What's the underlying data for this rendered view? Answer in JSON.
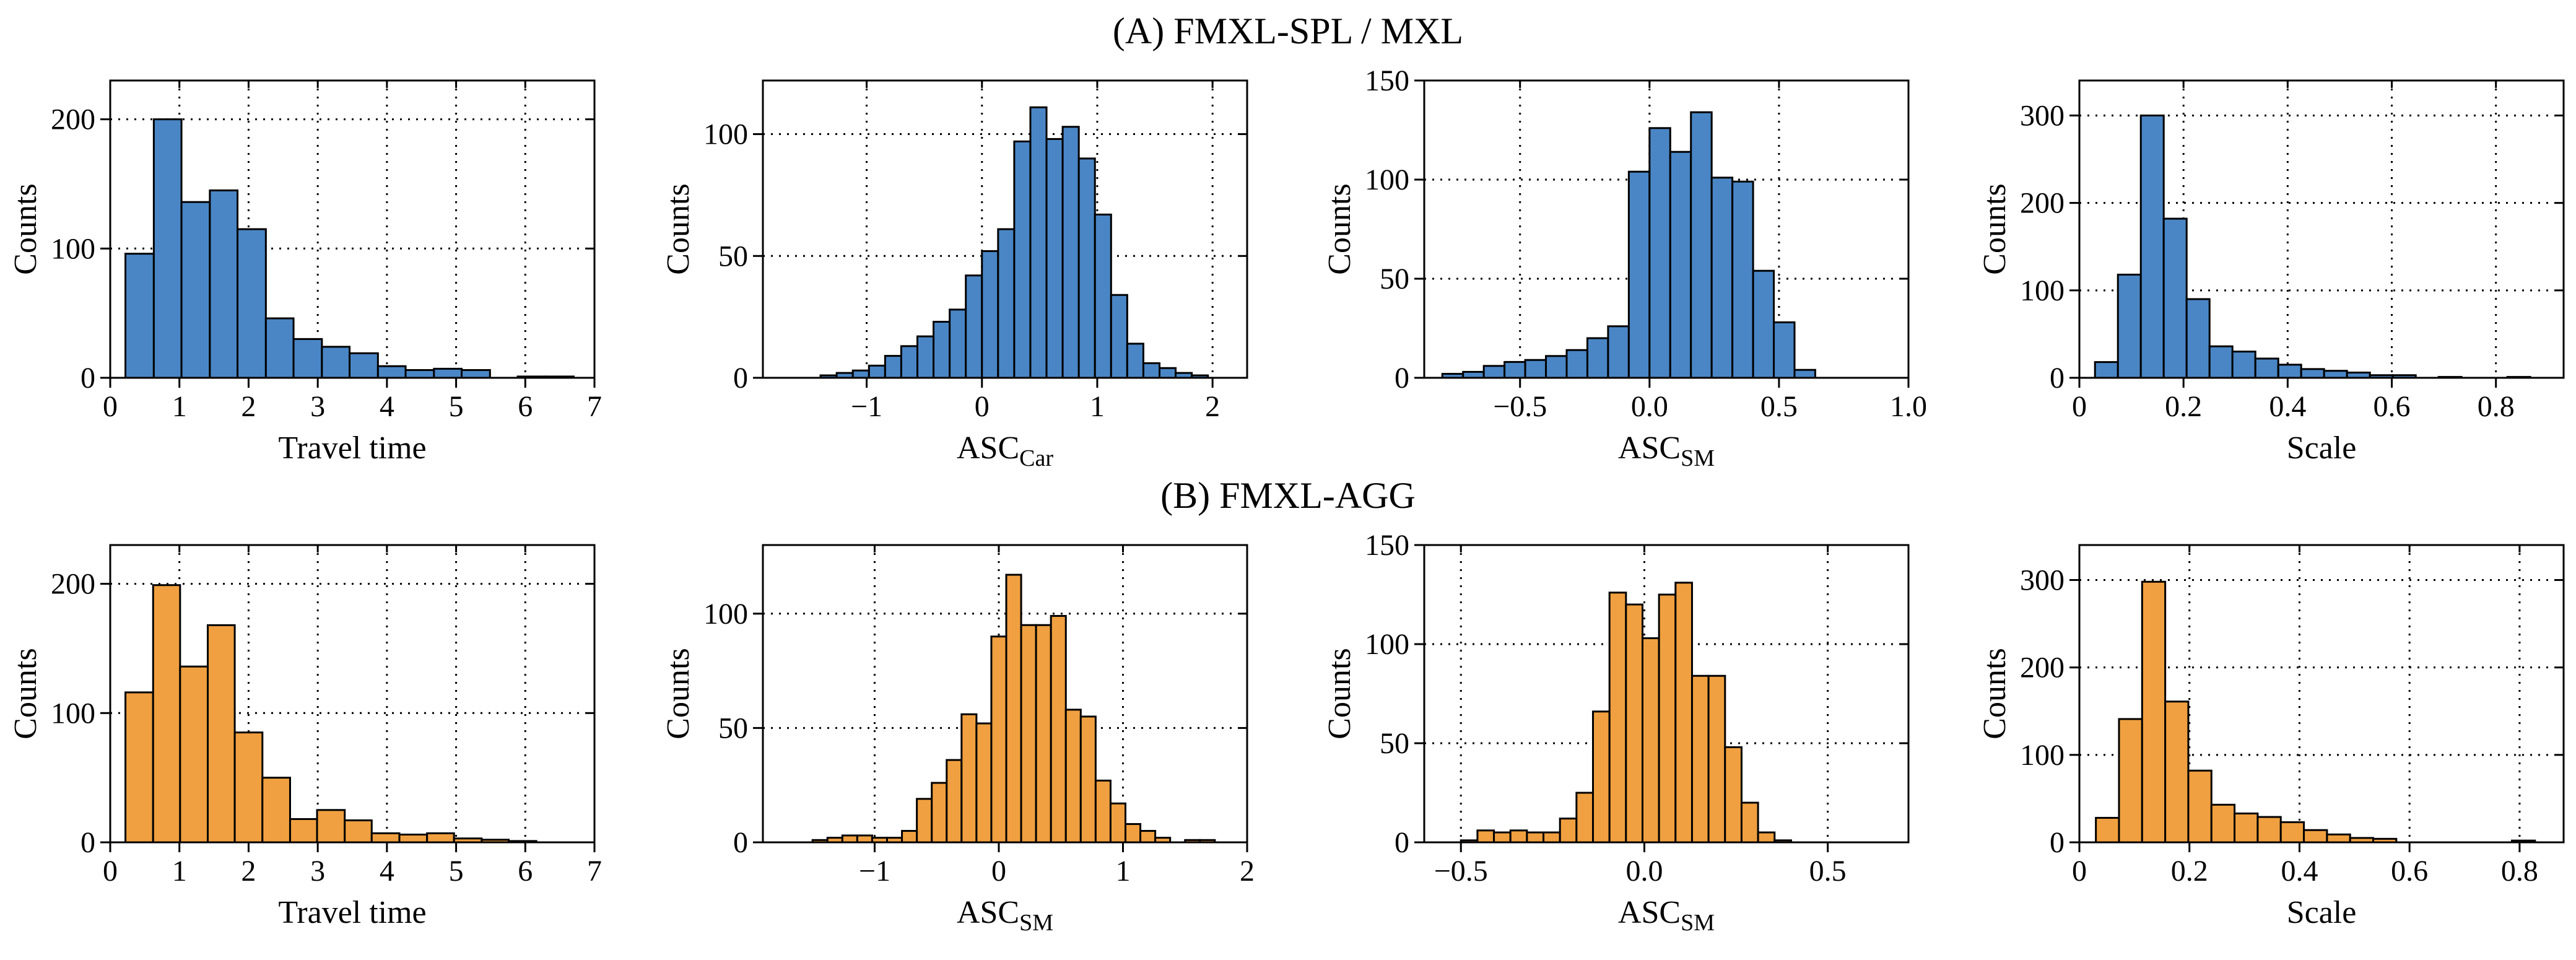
{
  "figure": {
    "row_titles": [
      "(A) FMXL-SPL / MXL",
      "(B) FMXL-AGG"
    ]
  },
  "colors": {
    "blue": "#4a86c5",
    "orange": "#f0a040",
    "edge": "#000000",
    "grid": "#000000"
  },
  "chart_data": [
    {
      "type": "bar",
      "row": "(A) FMXL-SPL / MXL",
      "color": "blue",
      "xlabel": "Travel time",
      "xlabel_sub": "",
      "ylabel": "Counts",
      "xlim": [
        0,
        7
      ],
      "ylim": [
        0,
        230
      ],
      "xticks": [
        0,
        1,
        2,
        3,
        4,
        5,
        6,
        7
      ],
      "xtick_labels": [
        "0",
        "1",
        "2",
        "3",
        "4",
        "5",
        "6",
        "7"
      ],
      "yticks": [
        0,
        100,
        200
      ],
      "ytick_labels": [
        "0",
        "100",
        "200"
      ],
      "bin_edges": [
        0.22,
        0.63,
        1.03,
        1.44,
        1.84,
        2.25,
        2.65,
        3.06,
        3.46,
        3.87,
        4.27,
        4.68,
        5.08,
        5.49,
        5.89,
        6.3,
        6.7
      ],
      "counts": [
        96,
        200,
        136,
        145,
        115,
        46,
        30,
        24,
        19,
        9,
        6,
        7,
        6,
        0,
        1,
        1
      ],
      "grid": true
    },
    {
      "type": "bar",
      "row": "(A) FMXL-SPL / MXL",
      "color": "blue",
      "xlabel": "ASC",
      "xlabel_sub": "Car",
      "ylabel": "Counts",
      "xlim": [
        -1.9,
        2.3
      ],
      "ylim": [
        0,
        122
      ],
      "xticks": [
        -1,
        0,
        1,
        2
      ],
      "xtick_labels": [
        "−1",
        "0",
        "1",
        "2"
      ],
      "yticks": [
        0,
        50,
        100
      ],
      "ytick_labels": [
        "0",
        "50",
        "100"
      ],
      "bin_edges": [
        -1.4,
        -1.26,
        -1.12,
        -0.98,
        -0.84,
        -0.7,
        -0.56,
        -0.42,
        -0.28,
        -0.14,
        0.0,
        0.14,
        0.28,
        0.42,
        0.56,
        0.7,
        0.84,
        0.98,
        1.12,
        1.26,
        1.4,
        1.54,
        1.68,
        1.82,
        1.96
      ],
      "counts": [
        1,
        2,
        3,
        5,
        9,
        13,
        17,
        23,
        28,
        42,
        52,
        61,
        97,
        111,
        98,
        103,
        90,
        67,
        34,
        14,
        6,
        4,
        2,
        1
      ],
      "grid": true
    },
    {
      "type": "bar",
      "row": "(A) FMXL-SPL / MXL",
      "color": "blue",
      "xlabel": "ASC",
      "xlabel_sub": "SM",
      "ylabel": "Counts",
      "xlim": [
        -0.87,
        1.0
      ],
      "ylim": [
        0,
        150
      ],
      "xticks": [
        -0.5,
        0.0,
        0.5,
        1.0
      ],
      "xtick_labels": [
        "−0.5",
        "0.0",
        "0.5",
        "1.0"
      ],
      "yticks": [
        0,
        50,
        100,
        150
      ],
      "ytick_labels": [
        "0",
        "50",
        "100",
        "150"
      ],
      "bin_edges": [
        -0.8,
        -0.72,
        -0.64,
        -0.56,
        -0.48,
        -0.4,
        -0.32,
        -0.24,
        -0.16,
        -0.08,
        0.0,
        0.08,
        0.16,
        0.24,
        0.32,
        0.4,
        0.48,
        0.56,
        0.64,
        0.72,
        0.8,
        0.88
      ],
      "counts": [
        2,
        3,
        6,
        8,
        9,
        11,
        14,
        20,
        26,
        104,
        126,
        114,
        134,
        101,
        99,
        54,
        28,
        4,
        0,
        0,
        0
      ],
      "grid": true
    },
    {
      "type": "bar",
      "row": "(A) FMXL-SPL / MXL",
      "color": "blue",
      "xlabel": "Scale",
      "xlabel_sub": "",
      "ylabel": "Counts",
      "xlim": [
        0,
        0.93
      ],
      "ylim": [
        0,
        340
      ],
      "xticks": [
        0,
        0.2,
        0.4,
        0.6,
        0.8
      ],
      "xtick_labels": [
        "0",
        "0.2",
        "0.4",
        "0.6",
        "0.8"
      ],
      "yticks": [
        0,
        100,
        200,
        300
      ],
      "ytick_labels": [
        "0",
        "100",
        "200",
        "300"
      ],
      "bin_edges": [
        0.03,
        0.074,
        0.118,
        0.162,
        0.206,
        0.25,
        0.294,
        0.338,
        0.382,
        0.426,
        0.47,
        0.514,
        0.558,
        0.602,
        0.646,
        0.69,
        0.734,
        0.778,
        0.822,
        0.866
      ],
      "counts": [
        18,
        118,
        300,
        182,
        90,
        36,
        30,
        22,
        15,
        10,
        8,
        6,
        3,
        3,
        0,
        1,
        0,
        0,
        1
      ],
      "grid": true
    },
    {
      "type": "bar",
      "row": "(B) FMXL-AGG",
      "color": "orange",
      "xlabel": "Travel time",
      "xlabel_sub": "",
      "ylabel": "Counts",
      "xlim": [
        0,
        7
      ],
      "ylim": [
        0,
        230
      ],
      "xticks": [
        0,
        1,
        2,
        3,
        4,
        5,
        6,
        7
      ],
      "xtick_labels": [
        "0",
        "1",
        "2",
        "3",
        "4",
        "5",
        "6",
        "7"
      ],
      "yticks": [
        0,
        100,
        200
      ],
      "ytick_labels": [
        "0",
        "100",
        "200"
      ],
      "bin_edges": [
        0.22,
        0.62,
        1.01,
        1.41,
        1.8,
        2.2,
        2.6,
        2.99,
        3.39,
        3.78,
        4.18,
        4.58,
        4.97,
        5.37,
        5.76,
        6.16
      ],
      "counts": [
        116,
        199,
        136,
        168,
        85,
        50,
        18,
        25,
        17,
        7,
        6,
        7,
        3,
        2,
        1
      ],
      "grid": true
    },
    {
      "type": "bar",
      "row": "(B) FMXL-AGG",
      "color": "orange",
      "xlabel": "ASC",
      "xlabel_sub": "SM",
      "ylabel": "Counts",
      "xlim": [
        -1.9,
        2.0
      ],
      "ylim": [
        0,
        130
      ],
      "xticks": [
        -1,
        0,
        1,
        2
      ],
      "xtick_labels": [
        "−1",
        "0",
        "1",
        "2"
      ],
      "yticks": [
        0,
        50,
        100
      ],
      "ytick_labels": [
        "0",
        "50",
        "100"
      ],
      "bin_edges": [
        -1.5,
        -1.38,
        -1.26,
        -1.14,
        -1.02,
        -0.9,
        -0.78,
        -0.66,
        -0.54,
        -0.42,
        -0.3,
        -0.18,
        -0.06,
        0.06,
        0.18,
        0.3,
        0.42,
        0.54,
        0.66,
        0.78,
        0.9,
        1.02,
        1.14,
        1.26,
        1.38,
        1.5,
        1.62,
        1.74
      ],
      "counts": [
        1,
        2,
        3,
        3,
        2,
        2,
        5,
        19,
        26,
        36,
        56,
        52,
        90,
        117,
        95,
        95,
        99,
        58,
        55,
        27,
        17,
        8,
        5,
        2,
        0,
        1,
        1
      ],
      "grid": true
    },
    {
      "type": "bar",
      "row": "(B) FMXL-AGG",
      "color": "orange",
      "xlabel": "ASC",
      "xlabel_sub": "SM",
      "ylabel": "Counts",
      "xlim": [
        -0.6,
        0.72
      ],
      "ylim": [
        0,
        150
      ],
      "xticks": [
        -0.5,
        0.0,
        0.5
      ],
      "xtick_labels": [
        "−0.5",
        "0.0",
        "0.5"
      ],
      "yticks": [
        0,
        50,
        100,
        150
      ],
      "ytick_labels": [
        "0",
        "50",
        "100",
        "150"
      ],
      "bin_edges": [
        -0.5,
        -0.455,
        -0.41,
        -0.365,
        -0.32,
        -0.275,
        -0.23,
        -0.185,
        -0.14,
        -0.095,
        -0.05,
        -0.005,
        0.04,
        0.085,
        0.13,
        0.175,
        0.22,
        0.265,
        0.31,
        0.355,
        0.4,
        0.445,
        0.49,
        0.535
      ],
      "counts": [
        1,
        6,
        5,
        6,
        5,
        5,
        12,
        25,
        66,
        126,
        120,
        103,
        125,
        131,
        84,
        84,
        48,
        20,
        5,
        1,
        0,
        0,
        0
      ],
      "grid": true
    },
    {
      "type": "bar",
      "row": "(B) FMXL-AGG",
      "color": "orange",
      "xlabel": "Scale",
      "xlabel_sub": "",
      "ylabel": "Counts",
      "xlim": [
        0,
        0.88
      ],
      "ylim": [
        0,
        340
      ],
      "xticks": [
        0,
        0.2,
        0.4,
        0.6,
        0.8
      ],
      "xtick_labels": [
        "0",
        "0.2",
        "0.4",
        "0.6",
        "0.8"
      ],
      "yticks": [
        0,
        100,
        200,
        300
      ],
      "ytick_labels": [
        "0",
        "100",
        "200",
        "300"
      ],
      "bin_edges": [
        0.03,
        0.072,
        0.114,
        0.156,
        0.198,
        0.24,
        0.282,
        0.324,
        0.366,
        0.408,
        0.45,
        0.492,
        0.534,
        0.576,
        0.618,
        0.66,
        0.702,
        0.744,
        0.786,
        0.828
      ],
      "counts": [
        28,
        141,
        298,
        161,
        82,
        43,
        33,
        29,
        23,
        14,
        9,
        5,
        4,
        0,
        0,
        0,
        0,
        0,
        2
      ],
      "grid": true
    }
  ]
}
